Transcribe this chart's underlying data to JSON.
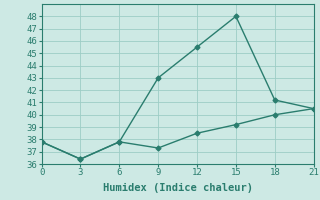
{
  "line1_x": [
    0,
    3,
    6,
    9,
    12,
    15,
    18,
    21
  ],
  "line1_y": [
    37.8,
    36.4,
    37.8,
    43.0,
    45.5,
    48.0,
    41.2,
    40.5
  ],
  "line2_x": [
    0,
    3,
    6,
    9,
    12,
    15,
    18,
    21
  ],
  "line2_y": [
    37.8,
    36.4,
    37.8,
    37.3,
    38.5,
    39.2,
    40.0,
    40.5
  ],
  "line_color": "#2a7d6e",
  "bg_color": "#cde9e4",
  "grid_color": "#9dcdc5",
  "xlabel": "Humidex (Indice chaleur)",
  "xlim": [
    0,
    21
  ],
  "ylim": [
    36,
    49
  ],
  "xticks": [
    0,
    3,
    6,
    9,
    12,
    15,
    18,
    21
  ],
  "yticks": [
    36,
    37,
    38,
    39,
    40,
    41,
    42,
    43,
    44,
    45,
    46,
    47,
    48
  ],
  "xlabel_fontsize": 7.5,
  "tick_fontsize": 6.5,
  "marker": "D",
  "markersize": 2.5,
  "linewidth": 1.0
}
